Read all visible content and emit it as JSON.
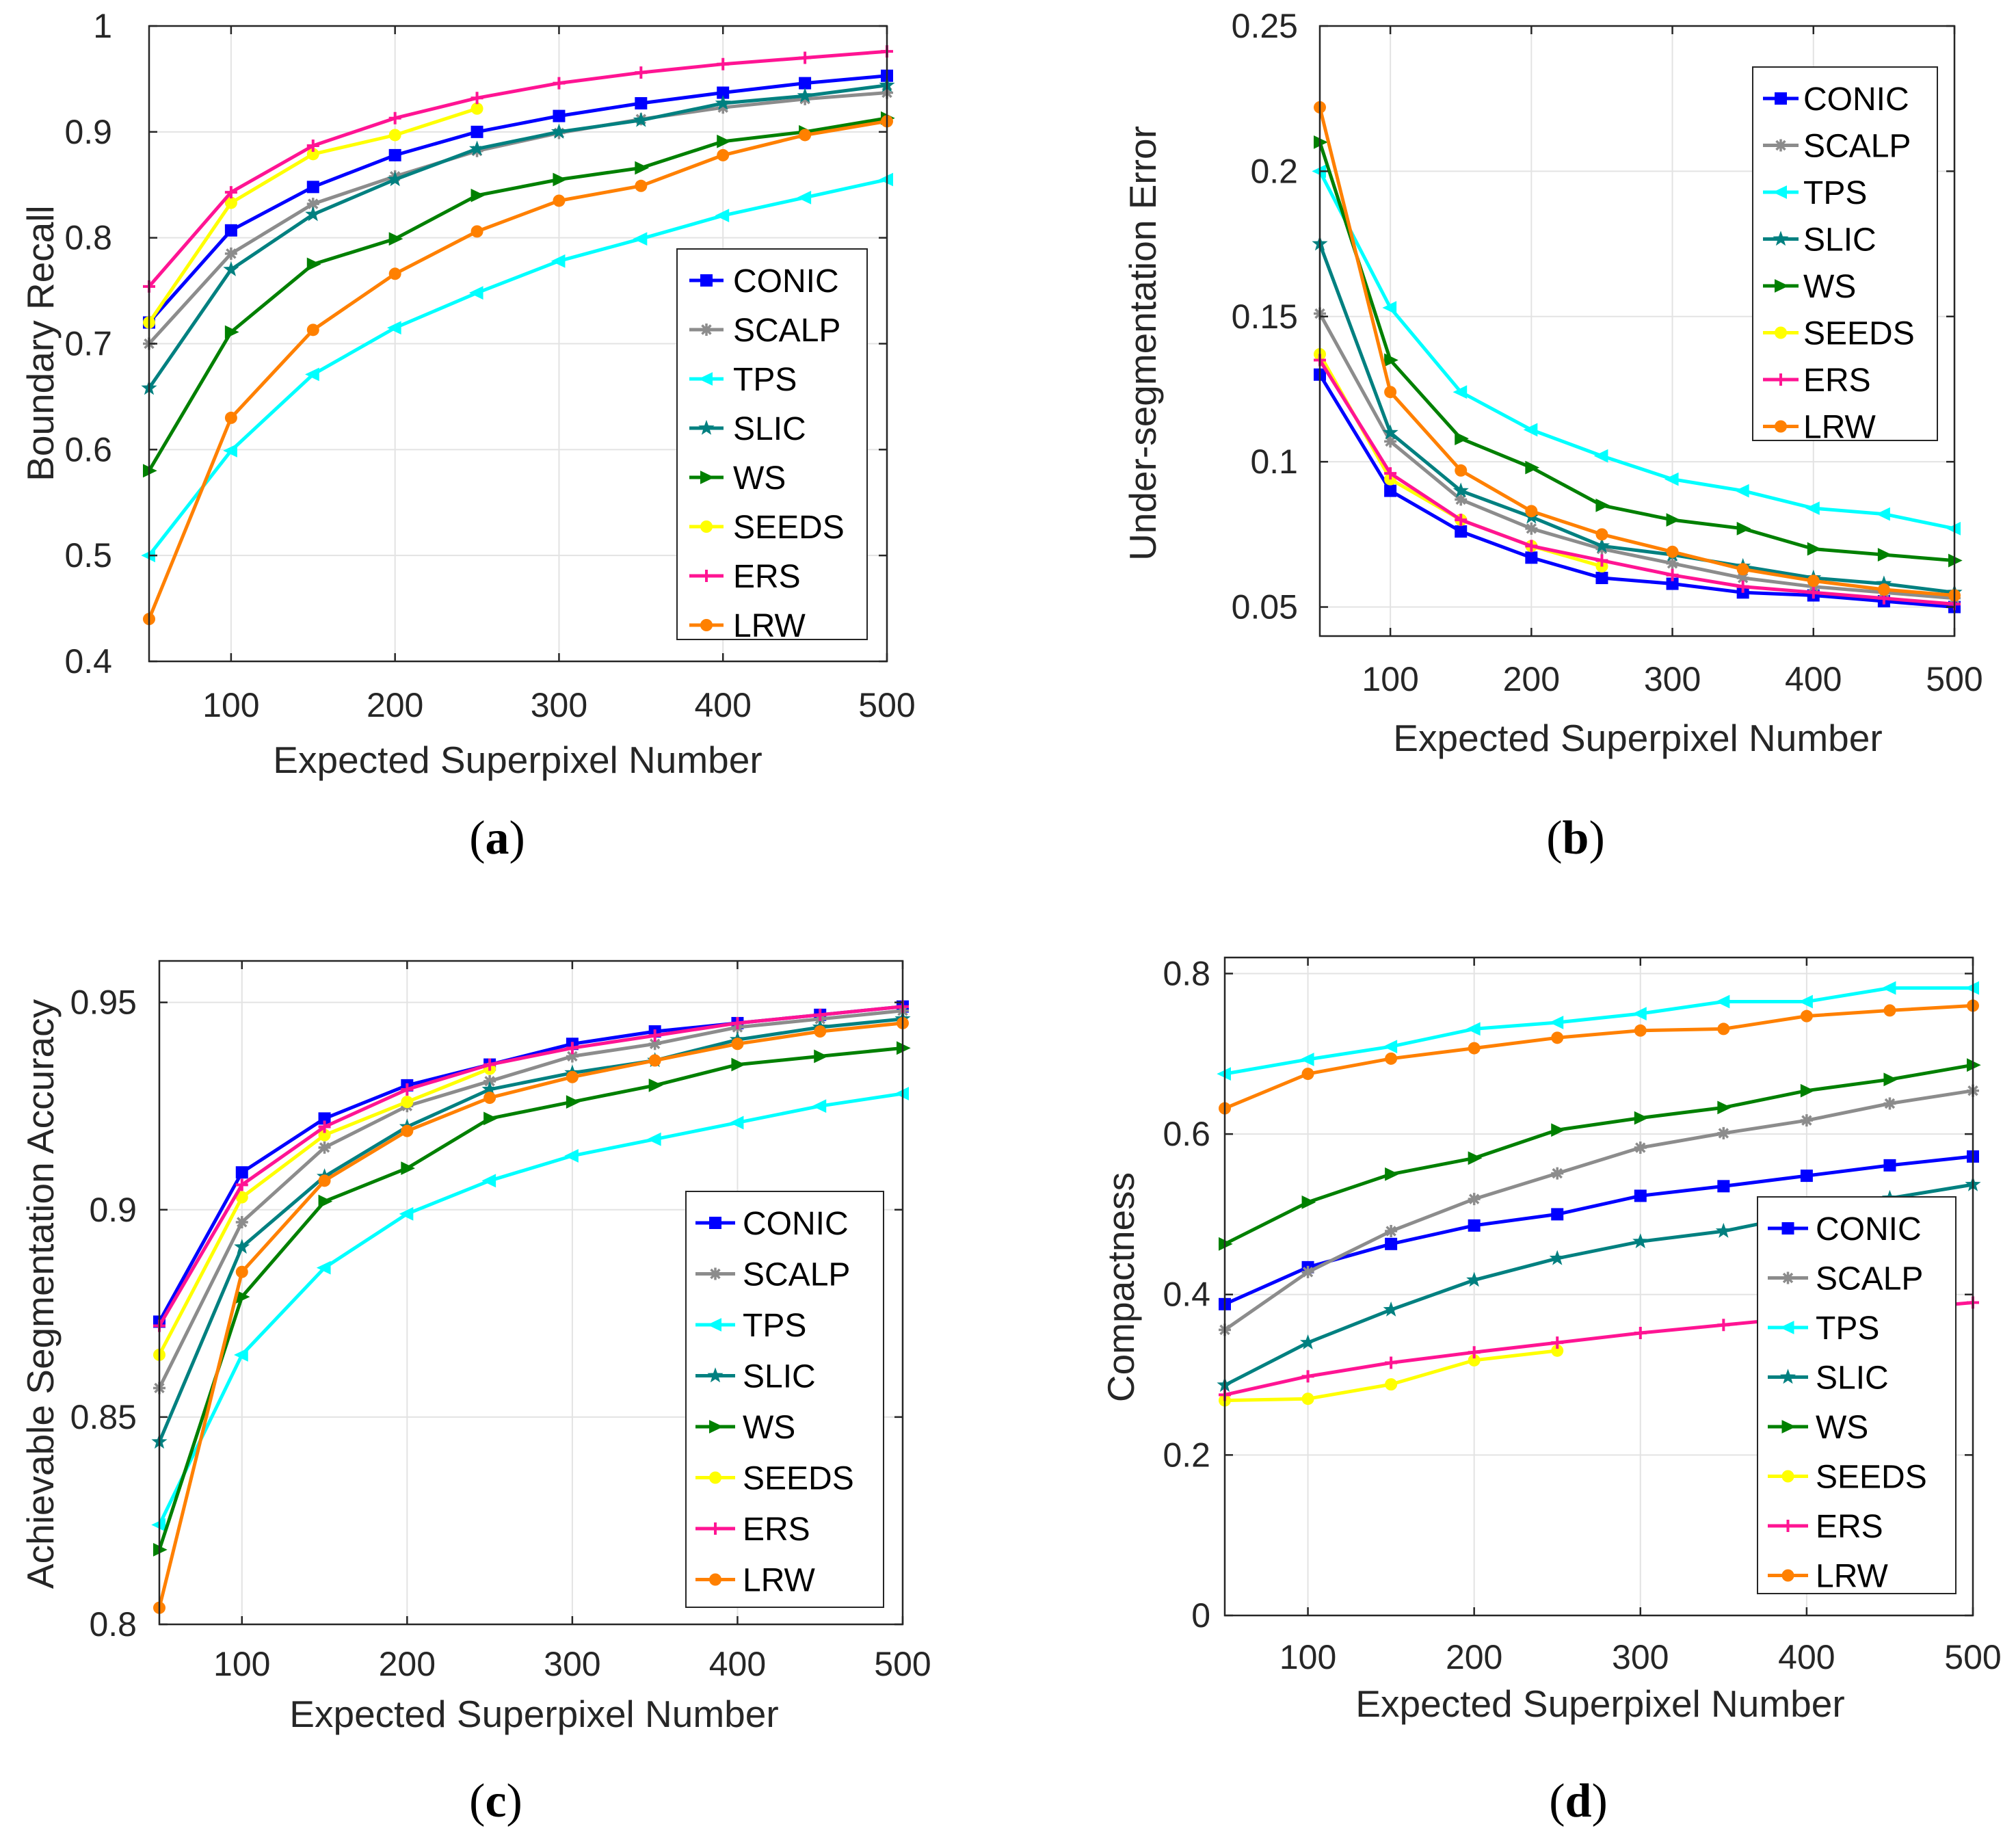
{
  "series_styles": {
    "CONIC": {
      "color": "#0000ff",
      "marker": "square"
    },
    "SCALP": {
      "color": "#8c8c8c",
      "marker": "asterisk"
    },
    "TPS": {
      "color": "#00ffff",
      "marker": "triangle-left"
    },
    "SLIC": {
      "color": "#008080",
      "marker": "star"
    },
    "WS": {
      "color": "#008000",
      "marker": "triangle-right"
    },
    "SEEDS": {
      "color": "#ffff00",
      "marker": "circle"
    },
    "ERS": {
      "color": "#ff1493",
      "marker": "plus"
    },
    "LRW": {
      "color": "#ff8000",
      "marker": "circle"
    }
  },
  "chart_data": [
    {
      "type": "line",
      "panel_label": {
        "pre": "(",
        "letter": "a",
        "post": ")"
      },
      "xlabel": "Expected Superpixel Number",
      "ylabel": "Boundary Recall",
      "xlim": [
        50,
        500
      ],
      "ylim": [
        0.4,
        1
      ],
      "xticks": [
        100,
        200,
        300,
        400,
        500
      ],
      "yticks": [
        0.4,
        0.5,
        0.6,
        0.7,
        0.8,
        0.9,
        1
      ],
      "ytick_labels": [
        "0.4",
        "0.5",
        "0.6",
        "0.7",
        "0.8",
        "0.9",
        "1"
      ],
      "grid": true,
      "legend_position": "right-lower",
      "series": [
        {
          "name": "CONIC",
          "x": [
            50,
            100,
            150,
            200,
            250,
            300,
            350,
            400,
            450,
            500
          ],
          "y": [
            0.72,
            0.807,
            0.848,
            0.878,
            0.9,
            0.915,
            0.927,
            0.937,
            0.946,
            0.953
          ]
        },
        {
          "name": "SCALP",
          "x": [
            50,
            100,
            150,
            200,
            250,
            300,
            350,
            400,
            450,
            500
          ],
          "y": [
            0.7,
            0.785,
            0.832,
            0.858,
            0.882,
            0.899,
            0.912,
            0.923,
            0.931,
            0.937
          ]
        },
        {
          "name": "TPS",
          "x": [
            50,
            100,
            150,
            200,
            250,
            300,
            350,
            400,
            450,
            500
          ],
          "y": [
            0.5,
            0.599,
            0.671,
            0.715,
            0.748,
            0.778,
            0.799,
            0.821,
            0.838,
            0.855
          ]
        },
        {
          "name": "SLIC",
          "x": [
            50,
            100,
            150,
            200,
            250,
            300,
            350,
            400,
            450,
            500
          ],
          "y": [
            0.658,
            0.77,
            0.822,
            0.855,
            0.884,
            0.9,
            0.911,
            0.927,
            0.934,
            0.944
          ]
        },
        {
          "name": "WS",
          "x": [
            50,
            100,
            150,
            200,
            250,
            300,
            350,
            400,
            450,
            500
          ],
          "y": [
            0.58,
            0.711,
            0.775,
            0.799,
            0.84,
            0.855,
            0.866,
            0.891,
            0.9,
            0.913
          ]
        },
        {
          "name": "SEEDS",
          "x": [
            50,
            100,
            150,
            200,
            250
          ],
          "y": [
            0.72,
            0.833,
            0.879,
            0.897,
            0.922
          ]
        },
        {
          "name": "ERS",
          "x": [
            50,
            100,
            150,
            200,
            250,
            300,
            350,
            400,
            450,
            500
          ],
          "y": [
            0.754,
            0.843,
            0.887,
            0.913,
            0.932,
            0.946,
            0.956,
            0.964,
            0.97,
            0.976
          ]
        },
        {
          "name": "LRW",
          "x": [
            50,
            100,
            150,
            200,
            250,
            300,
            350,
            400,
            450,
            500
          ],
          "y": [
            0.44,
            0.63,
            0.713,
            0.766,
            0.806,
            0.835,
            0.849,
            0.878,
            0.897,
            0.91
          ]
        }
      ]
    },
    {
      "type": "line",
      "panel_label": {
        "pre": "(",
        "letter": "b",
        "post": ")"
      },
      "xlabel": "Expected Superpixel Number",
      "ylabel": "Under-segmentation Error",
      "xlim": [
        50,
        500
      ],
      "ylim": [
        0.04,
        0.25
      ],
      "xticks": [
        100,
        200,
        300,
        400,
        500
      ],
      "yticks": [
        0.05,
        0.1,
        0.15,
        0.2,
        0.25
      ],
      "ytick_labels": [
        "0.05",
        "0.1",
        "0.15",
        "0.2",
        "0.25"
      ],
      "grid": true,
      "legend_position": "top-right",
      "series": [
        {
          "name": "CONIC",
          "x": [
            50,
            100,
            150,
            200,
            250,
            300,
            350,
            400,
            450,
            500
          ],
          "y": [
            0.13,
            0.09,
            0.076,
            0.067,
            0.06,
            0.058,
            0.055,
            0.054,
            0.052,
            0.05
          ]
        },
        {
          "name": "SCALP",
          "x": [
            50,
            100,
            150,
            200,
            250,
            300,
            350,
            400,
            450,
            500
          ],
          "y": [
            0.151,
            0.107,
            0.087,
            0.077,
            0.07,
            0.065,
            0.06,
            0.057,
            0.055,
            0.053
          ]
        },
        {
          "name": "TPS",
          "x": [
            50,
            100,
            150,
            200,
            250,
            300,
            350,
            400,
            450,
            500
          ],
          "y": [
            0.2,
            0.153,
            0.124,
            0.111,
            0.102,
            0.094,
            0.09,
            0.084,
            0.082,
            0.077
          ]
        },
        {
          "name": "SLIC",
          "x": [
            50,
            100,
            150,
            200,
            250,
            300,
            350,
            400,
            450,
            500
          ],
          "y": [
            0.175,
            0.11,
            0.09,
            0.081,
            0.071,
            0.068,
            0.064,
            0.06,
            0.058,
            0.055
          ]
        },
        {
          "name": "WS",
          "x": [
            50,
            100,
            150,
            200,
            250,
            300,
            350,
            400,
            450,
            500
          ],
          "y": [
            0.21,
            0.135,
            0.108,
            0.098,
            0.085,
            0.08,
            0.077,
            0.07,
            0.068,
            0.066
          ]
        },
        {
          "name": "SEEDS",
          "x": [
            50,
            100,
            150,
            200,
            250
          ],
          "y": [
            0.137,
            0.094,
            0.08,
            0.071,
            0.064
          ]
        },
        {
          "name": "ERS",
          "x": [
            50,
            100,
            150,
            200,
            250,
            300,
            350,
            400,
            450,
            500
          ],
          "y": [
            0.135,
            0.096,
            0.08,
            0.071,
            0.066,
            0.061,
            0.057,
            0.055,
            0.053,
            0.051
          ]
        },
        {
          "name": "LRW",
          "x": [
            50,
            100,
            150,
            200,
            250,
            300,
            350,
            400,
            450,
            500
          ],
          "y": [
            0.222,
            0.124,
            0.097,
            0.083,
            0.075,
            0.069,
            0.063,
            0.059,
            0.056,
            0.054
          ]
        }
      ]
    },
    {
      "type": "line",
      "panel_label": {
        "pre": "(",
        "letter": "c",
        "post": ")"
      },
      "xlabel": "Expected Superpixel Number",
      "ylabel": "Achievable Segmentation Accuracy",
      "xlim": [
        50,
        500
      ],
      "ylim": [
        0.8,
        0.96
      ],
      "xticks": [
        100,
        200,
        300,
        400,
        500
      ],
      "yticks": [
        0.8,
        0.85,
        0.9,
        0.95
      ],
      "ytick_labels": [
        "0.8",
        "0.85",
        "0.9",
        "0.95"
      ],
      "grid": true,
      "legend_position": "right-lower",
      "series": [
        {
          "name": "CONIC",
          "x": [
            50,
            100,
            150,
            200,
            250,
            300,
            350,
            400,
            450,
            500
          ],
          "y": [
            0.873,
            0.909,
            0.922,
            0.93,
            0.935,
            0.94,
            0.943,
            0.945,
            0.947,
            0.949
          ]
        },
        {
          "name": "SCALP",
          "x": [
            50,
            100,
            150,
            200,
            250,
            300,
            350,
            400,
            450,
            500
          ],
          "y": [
            0.857,
            0.897,
            0.915,
            0.925,
            0.931,
            0.937,
            0.94,
            0.944,
            0.946,
            0.948
          ]
        },
        {
          "name": "TPS",
          "x": [
            50,
            100,
            150,
            200,
            250,
            300,
            350,
            400,
            450,
            500
          ],
          "y": [
            0.824,
            0.865,
            0.886,
            0.899,
            0.907,
            0.913,
            0.917,
            0.921,
            0.925,
            0.928
          ]
        },
        {
          "name": "SLIC",
          "x": [
            50,
            100,
            150,
            200,
            250,
            300,
            350,
            400,
            450,
            500
          ],
          "y": [
            0.844,
            0.891,
            0.908,
            0.92,
            0.929,
            0.933,
            0.936,
            0.941,
            0.944,
            0.946
          ]
        },
        {
          "name": "WS",
          "x": [
            50,
            100,
            150,
            200,
            250,
            300,
            350,
            400,
            450,
            500
          ],
          "y": [
            0.818,
            0.879,
            0.902,
            0.91,
            0.922,
            0.926,
            0.93,
            0.935,
            0.937,
            0.939
          ]
        },
        {
          "name": "SEEDS",
          "x": [
            50,
            100,
            150,
            200,
            250
          ],
          "y": [
            0.865,
            0.903,
            0.918,
            0.926,
            0.934
          ]
        },
        {
          "name": "ERS",
          "x": [
            50,
            100,
            150,
            200,
            250,
            300,
            350,
            400,
            450,
            500
          ],
          "y": [
            0.872,
            0.906,
            0.92,
            0.929,
            0.935,
            0.939,
            0.942,
            0.945,
            0.947,
            0.949
          ]
        },
        {
          "name": "LRW",
          "x": [
            50,
            100,
            150,
            200,
            250,
            300,
            350,
            400,
            450,
            500
          ],
          "y": [
            0.804,
            0.885,
            0.907,
            0.919,
            0.927,
            0.932,
            0.936,
            0.94,
            0.943,
            0.945
          ]
        }
      ]
    },
    {
      "type": "line",
      "panel_label": {
        "pre": "(",
        "letter": "d",
        "post": ")"
      },
      "xlabel": "Expected Superpixel Number",
      "ylabel": "Compactness",
      "xlim": [
        50,
        500
      ],
      "ylim": [
        0,
        0.82
      ],
      "xticks": [
        100,
        200,
        300,
        400,
        500
      ],
      "yticks": [
        0,
        0.2,
        0.4,
        0.6,
        0.8
      ],
      "ytick_labels": [
        "0",
        "0.2",
        "0.4",
        "0.6",
        "0.8"
      ],
      "grid": true,
      "legend_position": "right-lower",
      "series": [
        {
          "name": "CONIC",
          "x": [
            50,
            100,
            150,
            200,
            250,
            300,
            350,
            400,
            450,
            500
          ],
          "y": [
            0.388,
            0.434,
            0.463,
            0.486,
            0.5,
            0.523,
            0.535,
            0.548,
            0.561,
            0.572
          ]
        },
        {
          "name": "SCALP",
          "x": [
            50,
            100,
            150,
            200,
            250,
            300,
            350,
            400,
            450,
            500
          ],
          "y": [
            0.356,
            0.428,
            0.479,
            0.519,
            0.551,
            0.583,
            0.601,
            0.617,
            0.638,
            0.654
          ]
        },
        {
          "name": "TPS",
          "x": [
            50,
            100,
            150,
            200,
            250,
            300,
            350,
            400,
            450,
            500
          ],
          "y": [
            0.675,
            0.693,
            0.709,
            0.731,
            0.739,
            0.75,
            0.765,
            0.765,
            0.782,
            0.782
          ]
        },
        {
          "name": "SLIC",
          "x": [
            50,
            100,
            150,
            200,
            250,
            300,
            350,
            400,
            450,
            500
          ],
          "y": [
            0.287,
            0.34,
            0.381,
            0.418,
            0.445,
            0.466,
            0.479,
            0.5,
            0.52,
            0.537
          ]
        },
        {
          "name": "WS",
          "x": [
            50,
            100,
            150,
            200,
            250,
            300,
            350,
            400,
            450,
            500
          ],
          "y": [
            0.463,
            0.515,
            0.55,
            0.57,
            0.605,
            0.62,
            0.633,
            0.654,
            0.668,
            0.686
          ]
        },
        {
          "name": "SEEDS",
          "x": [
            50,
            100,
            150,
            200,
            250
          ],
          "y": [
            0.268,
            0.27,
            0.288,
            0.318,
            0.33
          ]
        },
        {
          "name": "ERS",
          "x": [
            50,
            100,
            150,
            200,
            250,
            300,
            350,
            400,
            450,
            500
          ],
          "y": [
            0.275,
            0.298,
            0.315,
            0.328,
            0.34,
            0.352,
            0.362,
            0.372,
            0.381,
            0.39
          ]
        },
        {
          "name": "LRW",
          "x": [
            50,
            100,
            150,
            200,
            250,
            300,
            350,
            400,
            450,
            500
          ],
          "y": [
            0.632,
            0.675,
            0.694,
            0.707,
            0.72,
            0.729,
            0.731,
            0.747,
            0.754,
            0.76
          ]
        }
      ]
    }
  ]
}
